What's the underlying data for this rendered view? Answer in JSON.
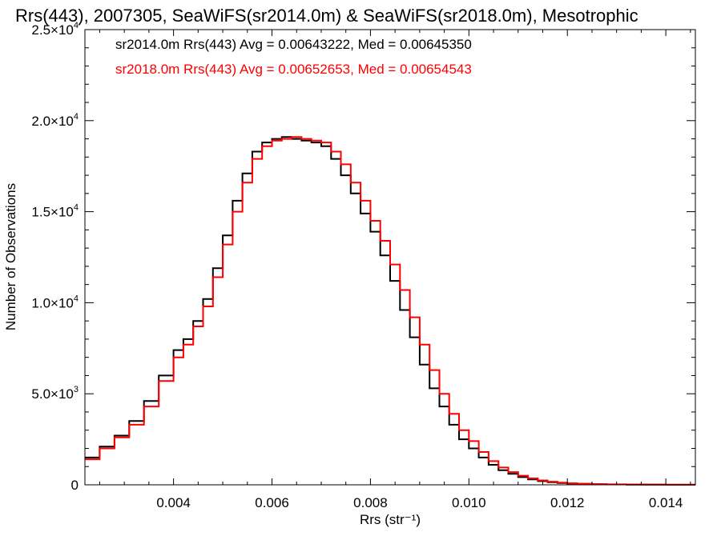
{
  "chart_data": {
    "type": "line",
    "title": "Rrs(443), 2007305, SeaWiFS(sr2014.0m) & SeaWiFS(sr2018.0m), Mesotrophic",
    "xlabel": "Rrs (str⁻¹)",
    "ylabel": "Number of Observations",
    "xlim": [
      0.0022,
      0.0146
    ],
    "ylim": [
      0,
      25000
    ],
    "x_ticks": [
      {
        "value": 0.004,
        "label": "0.004"
      },
      {
        "value": 0.006,
        "label": "0.006"
      },
      {
        "value": 0.008,
        "label": "0.008"
      },
      {
        "value": 0.01,
        "label": "0.010"
      },
      {
        "value": 0.012,
        "label": "0.012"
      },
      {
        "value": 0.014,
        "label": "0.014"
      }
    ],
    "y_ticks": [
      {
        "value": 0,
        "mant": "0",
        "exp": ""
      },
      {
        "value": 5000,
        "mant": "5.0×10",
        "exp": "3"
      },
      {
        "value": 10000,
        "mant": "1.0×10",
        "exp": "4"
      },
      {
        "value": 15000,
        "mant": "1.5×10",
        "exp": "4"
      },
      {
        "value": 20000,
        "mant": "2.0×10",
        "exp": "4"
      },
      {
        "value": 25000,
        "mant": "2.5×10",
        "exp": "4"
      }
    ],
    "grid": false,
    "legend_placement": "top-left",
    "annotations": [
      {
        "text": "sr2014.0m Rrs(443) Avg = 0.00643222, Med = 0.00645350",
        "color": "#000000"
      },
      {
        "text": "sr2018.0m Rrs(443) Avg = 0.00652653, Med = 0.00654543",
        "color": "#ff0000"
      }
    ],
    "series": [
      {
        "color": "#000000",
        "x": [
          0.0022,
          0.0025,
          0.0028,
          0.0031,
          0.0034,
          0.0037,
          0.004,
          0.0042,
          0.0044,
          0.0046,
          0.0048,
          0.005,
          0.0052,
          0.0054,
          0.0056,
          0.0058,
          0.006,
          0.0062,
          0.0064,
          0.0066,
          0.0068,
          0.007,
          0.0072,
          0.0074,
          0.0076,
          0.0078,
          0.008,
          0.0082,
          0.0084,
          0.0086,
          0.0088,
          0.009,
          0.0092,
          0.0094,
          0.0096,
          0.0098,
          0.01,
          0.0102,
          0.0104,
          0.0106,
          0.0108,
          0.011,
          0.0112,
          0.0114,
          0.0116,
          0.0118,
          0.012,
          0.0122,
          0.0125,
          0.0128,
          0.0132,
          0.0136,
          0.014,
          0.0146
        ],
        "y": [
          1500,
          2100,
          2700,
          3500,
          4600,
          6000,
          7400,
          8000,
          9000,
          10200,
          11900,
          13700,
          15600,
          17100,
          18300,
          18800,
          19000,
          19100,
          19000,
          18900,
          18800,
          18600,
          17900,
          17000,
          16000,
          14900,
          13900,
          12600,
          11200,
          9600,
          8100,
          6600,
          5300,
          4300,
          3300,
          2500,
          2000,
          1500,
          1100,
          800,
          600,
          420,
          300,
          200,
          140,
          100,
          70,
          50,
          35,
          20,
          15,
          10,
          5,
          5
        ]
      },
      {
        "color": "#ff0000",
        "x": [
          0.0022,
          0.0025,
          0.0028,
          0.0031,
          0.0034,
          0.0037,
          0.004,
          0.0042,
          0.0044,
          0.0046,
          0.0048,
          0.005,
          0.0052,
          0.0054,
          0.0056,
          0.0058,
          0.006,
          0.0062,
          0.0064,
          0.0066,
          0.0068,
          0.007,
          0.0072,
          0.0074,
          0.0076,
          0.0078,
          0.008,
          0.0082,
          0.0084,
          0.0086,
          0.0088,
          0.009,
          0.0092,
          0.0094,
          0.0096,
          0.0098,
          0.01,
          0.0102,
          0.0104,
          0.0106,
          0.0108,
          0.011,
          0.0112,
          0.0114,
          0.0116,
          0.0118,
          0.012,
          0.0122,
          0.0125,
          0.0128,
          0.0132,
          0.0136,
          0.014,
          0.0146
        ],
        "y": [
          1400,
          2000,
          2600,
          3300,
          4300,
          5700,
          7000,
          7700,
          8700,
          9800,
          11400,
          13200,
          15000,
          16600,
          17900,
          18600,
          18900,
          19000,
          19100,
          19000,
          18900,
          18800,
          18300,
          17600,
          16600,
          15600,
          14500,
          13400,
          12100,
          10700,
          9200,
          7700,
          6300,
          5000,
          3900,
          3000,
          2400,
          1800,
          1300,
          950,
          700,
          500,
          350,
          240,
          170,
          120,
          85,
          60,
          40,
          25,
          18,
          12,
          6,
          5
        ]
      }
    ]
  }
}
